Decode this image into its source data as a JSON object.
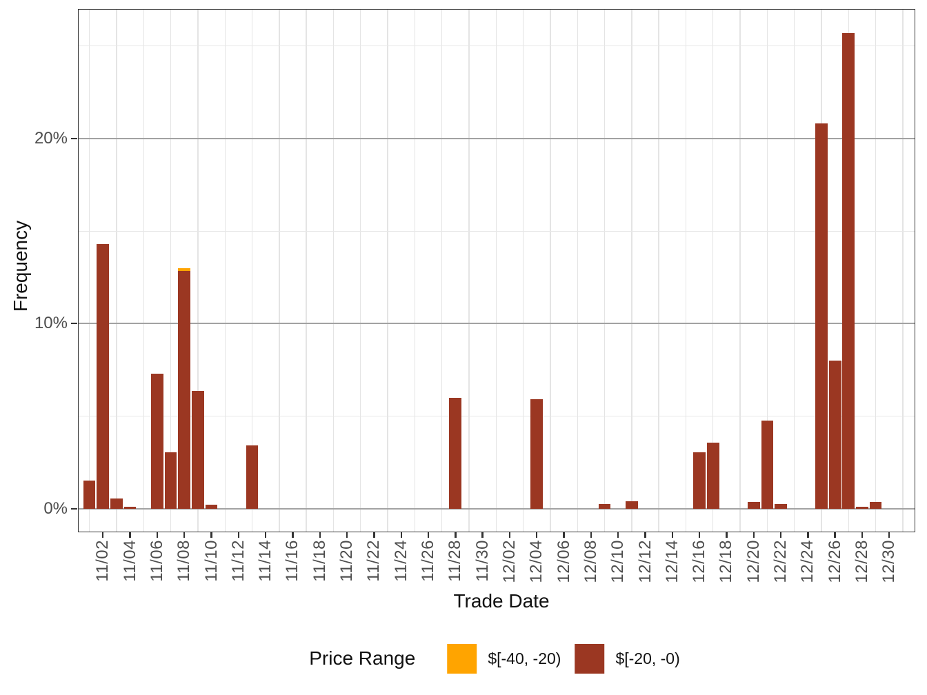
{
  "figure": {
    "y_axis_title": "Frequency",
    "x_axis_title": "Trade Date"
  },
  "legend": {
    "title": "Price Range",
    "items": [
      {
        "label": "$[-40, -20)",
        "color": "#FFA400"
      },
      {
        "label": "$[-20, -0)",
        "color": "#9B3722"
      }
    ]
  },
  "chart_data": {
    "type": "bar",
    "stacked": true,
    "orientation": "vertical",
    "title": "",
    "xlabel": "Trade Date",
    "ylabel": "Frequency",
    "legend_position": "bottom",
    "grid": {
      "horizontal_major": true,
      "horizontal_minor": true,
      "vertical_minor_between_ticks": true
    },
    "y_axis": {
      "unit": "percent",
      "tick_labels": [
        "0%",
        "10%",
        "20%"
      ],
      "tick_values": [
        0,
        10,
        20
      ],
      "minor_values": [
        5,
        15,
        25
      ],
      "ylim": [
        -1.3,
        27.0
      ]
    },
    "x_axis": {
      "first_date": "11/01",
      "last_date": "12/31",
      "tick_labels": [
        "11/02",
        "11/04",
        "11/06",
        "11/08",
        "11/10",
        "11/12",
        "11/14",
        "11/16",
        "11/18",
        "11/20",
        "11/22",
        "11/24",
        "11/26",
        "11/28",
        "11/30",
        "12/02",
        "12/04",
        "12/06",
        "12/08",
        "12/10",
        "12/12",
        "12/14",
        "12/16",
        "12/18",
        "12/20",
        "12/22",
        "12/24",
        "12/26",
        "12/28",
        "12/30"
      ]
    },
    "series": [
      {
        "key": "orange",
        "name": "$[-40, -20)",
        "color": "#FFA400"
      },
      {
        "key": "red",
        "name": "$[-20, -0)",
        "color": "#9B3722"
      }
    ],
    "bars": [
      {
        "date": "11/01",
        "red": 1.5
      },
      {
        "date": "11/02",
        "red": 14.3
      },
      {
        "date": "11/03",
        "red": 0.55
      },
      {
        "date": "11/04",
        "red": 0.1
      },
      {
        "date": "11/06",
        "red": 7.3
      },
      {
        "date": "11/07",
        "red": 3.05
      },
      {
        "date": "11/08",
        "red": 12.85,
        "orange": 0.15
      },
      {
        "date": "11/09",
        "red": 6.35
      },
      {
        "date": "11/10",
        "red": 0.2
      },
      {
        "date": "11/13",
        "red": 3.4
      },
      {
        "date": "11/28",
        "red": 6.0
      },
      {
        "date": "12/04",
        "red": 5.9
      },
      {
        "date": "12/09",
        "red": 0.25
      },
      {
        "date": "12/11",
        "red": 0.4
      },
      {
        "date": "12/16",
        "red": 3.05
      },
      {
        "date": "12/17",
        "red": 3.55
      },
      {
        "date": "12/20",
        "red": 0.35
      },
      {
        "date": "12/21",
        "red": 4.75
      },
      {
        "date": "12/22",
        "red": 0.25
      },
      {
        "date": "12/25",
        "red": 20.8
      },
      {
        "date": "12/26",
        "red": 8.0
      },
      {
        "date": "12/27",
        "red": 25.7
      },
      {
        "date": "12/28",
        "red": 0.1
      },
      {
        "date": "12/29",
        "red": 0.35
      }
    ]
  }
}
